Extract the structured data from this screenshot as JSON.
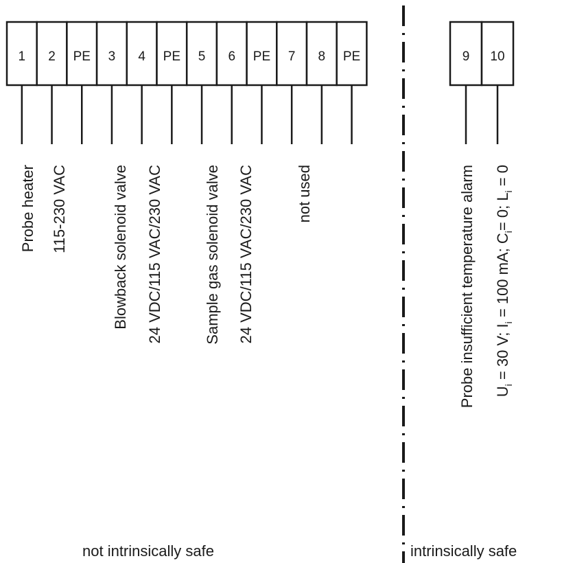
{
  "terminals_left": [
    "1",
    "2",
    "PE",
    "3",
    "4",
    "PE",
    "5",
    "6",
    "PE",
    "7",
    "8",
    "PE"
  ],
  "terminals_right": [
    "9",
    "10"
  ],
  "labels": {
    "probe_heater": "Probe heater",
    "probe_heater_voltage": "115-230 VAC",
    "blowback_valve": "Blowback solenoid valve",
    "blowback_voltage": "24 VDC/115 VAC/230 VAC",
    "sample_gas_valve": "Sample gas solenoid valve",
    "sample_gas_voltage": "24 VDC/115 VAC/230 VAC",
    "not_used": "not used",
    "temp_alarm": "Probe insufficient temperature alarm",
    "temp_alarm_params": {
      "U": "U",
      "i1": "i",
      "u_val": " = 30 V; I",
      "i2": "i",
      "i_val": " = 100 mA; C",
      "i3": "i",
      "c_val": "= 0; L",
      "i4": "i",
      "l_val": " = 0"
    }
  },
  "zones": {
    "left": "not intrinsically safe",
    "right": "intrinsically safe"
  }
}
